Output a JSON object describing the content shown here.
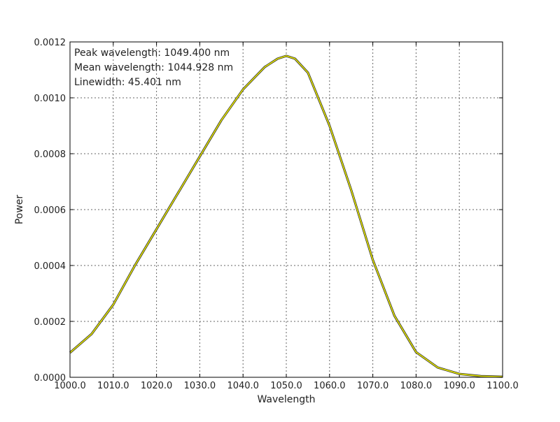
{
  "chart_data": {
    "type": "line",
    "xlabel": "Wavelength",
    "ylabel": "Power",
    "xlim": [
      1000.0,
      1100.0
    ],
    "ylim": [
      0.0,
      0.0012
    ],
    "grid": true,
    "x_ticks": [
      1000,
      1010,
      1020,
      1030,
      1040,
      1050,
      1060,
      1070,
      1080,
      1090,
      1100
    ],
    "x_tick_labels": [
      "1000.0",
      "1010.0",
      "1020.0",
      "1030.0",
      "1040.0",
      "1050.0",
      "1060.0",
      "1070.0",
      "1080.0",
      "1090.0",
      "1100.0"
    ],
    "y_ticks": [
      0,
      0.0002,
      0.0004,
      0.0006,
      0.0008,
      0.001,
      0.0012
    ],
    "y_tick_labels": [
      "0.0000",
      "0.0002",
      "0.0004",
      "0.0006",
      "0.0008",
      "0.0010",
      "0.0012"
    ],
    "annotations": [
      "Peak wavelength: 1049.400 nm",
      "Mean wavelength: 1044.928 nm",
      "Linewidth: 45.401 nm"
    ],
    "series": [
      {
        "color": "#e6e600",
        "x": [
          1000,
          1005,
          1010,
          1015,
          1020,
          1025,
          1030,
          1035,
          1040,
          1045,
          1048,
          1050,
          1052,
          1055,
          1060,
          1065,
          1070,
          1075,
          1080,
          1085,
          1090,
          1095,
          1100
        ],
        "y": [
          8.8e-05,
          0.000155,
          0.00026,
          0.0004,
          0.00053,
          0.00066,
          0.00079,
          0.00092,
          0.00103,
          0.00111,
          0.00114,
          0.00115,
          0.00114,
          0.00109,
          0.0009,
          0.00067,
          0.00042,
          0.00022,
          9e-05,
          3.5e-05,
          1.2e-05,
          4e-06,
          2e-06
        ]
      }
    ]
  }
}
